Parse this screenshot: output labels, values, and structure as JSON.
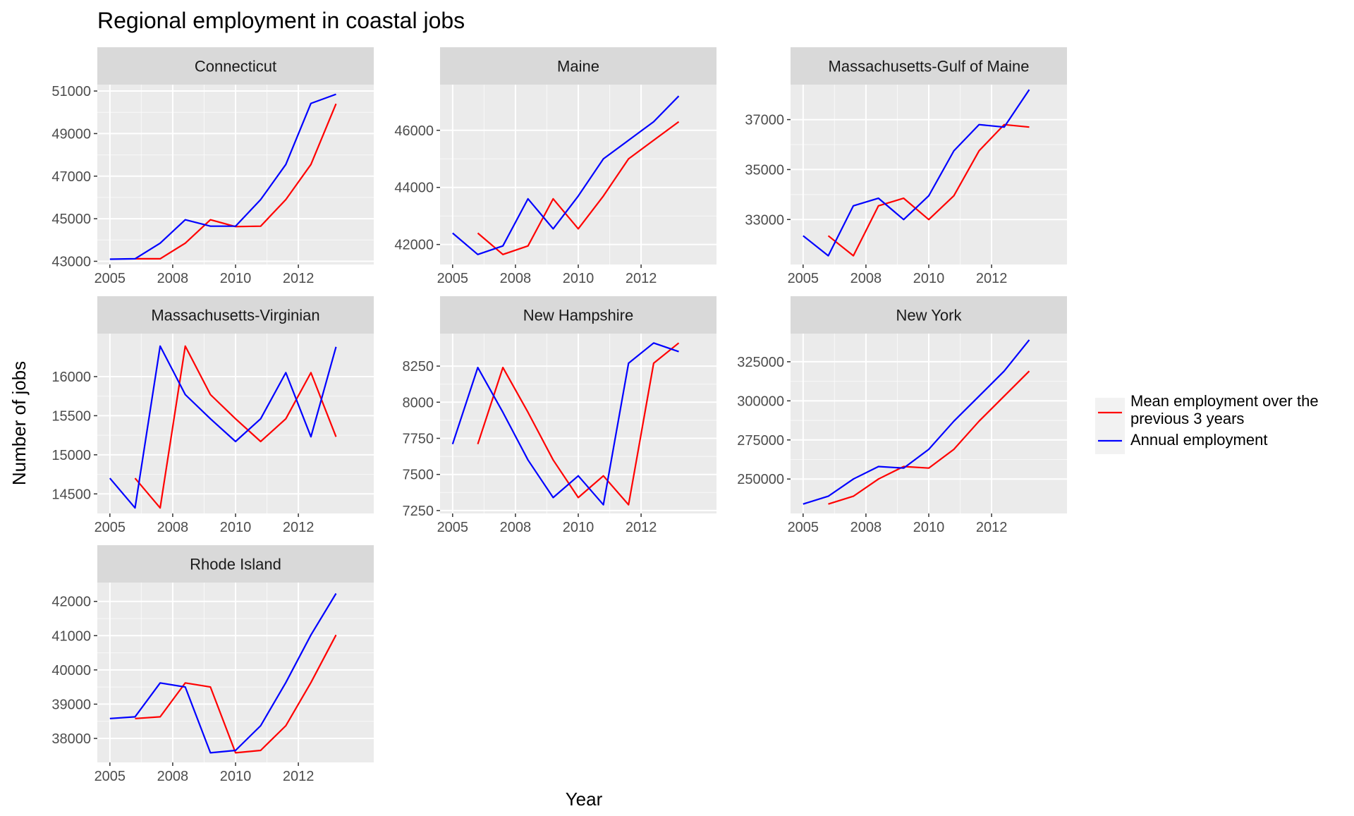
{
  "chart_data": {
    "type": "line",
    "title": "Regional employment in coastal jobs",
    "xlabel": "Year",
    "ylabel": "Number of jobs",
    "x_tick_labels": [
      "2005",
      "2008",
      "2010",
      "2012"
    ],
    "grid": true,
    "legend_position": "right",
    "series_style": [
      {
        "key": "mean",
        "name": "Mean employment over the previous 3 years",
        "name_lines": [
          "Mean employment over the",
          "previous 3 years"
        ],
        "color": "#ff0000"
      },
      {
        "key": "annual",
        "name": "Annual employment",
        "name_lines": [
          "Annual employment"
        ],
        "color": "#0000ff"
      }
    ],
    "panels": [
      {
        "name": "Connecticut",
        "xlim": [
          2004.6,
          2013.4
        ],
        "ylim": [
          42850,
          51300
        ],
        "yticks": [
          43000,
          45000,
          47000,
          49000,
          51000
        ],
        "ytick_labels": [
          "43000",
          "45000",
          "47000",
          "49000",
          "51000"
        ],
        "annual": {
          "x": [
            2005,
            2005.8,
            2006.6,
            2007.4,
            2008.2,
            2009,
            2009.8,
            2010.6,
            2011.4,
            2012.2,
            2013
          ],
          "y": [
            43100,
            43120,
            43850,
            44950,
            44650,
            44650,
            45900,
            47550,
            50420,
            50850,
            null
          ]
        },
        "mean": {
          "x": [
            2005.8,
            2006.6,
            2007.4,
            2008.2,
            2009,
            2009.8,
            2010.6,
            2011.4,
            2012.2,
            2013
          ],
          "y": [
            43120,
            43120,
            43850,
            44950,
            44630,
            44650,
            45900,
            47550,
            50400,
            null
          ]
        }
      },
      {
        "name": "Maine",
        "xlim": [
          2004.6,
          2013.4
        ],
        "ylim": [
          41300,
          47600
        ],
        "yticks": [
          42000,
          44000,
          46000
        ],
        "ytick_labels": [
          "42000",
          "44000",
          "46000"
        ],
        "annual": {
          "x": [
            2005,
            2005.8,
            2006.6,
            2007.4,
            2008.2,
            2009,
            2009.8,
            2010.6,
            2011.4,
            2012.2
          ],
          "y": [
            42400,
            41650,
            41950,
            43600,
            42550,
            43700,
            45000,
            45650,
            46300,
            47200
          ]
        },
        "mean": {
          "x": [
            2005.8,
            2006.6,
            2007.4,
            2008.2,
            2009,
            2009.8,
            2010.6,
            2011.4,
            2012.2
          ],
          "y": [
            42400,
            41650,
            41950,
            43600,
            42550,
            43700,
            45000,
            45650,
            46300
          ]
        }
      },
      {
        "name": "Massachusetts-Gulf of Maine",
        "xlim": [
          2004.6,
          2013.4
        ],
        "ylim": [
          31200,
          38400
        ],
        "yticks": [
          33000,
          35000,
          37000
        ],
        "ytick_labels": [
          "33000",
          "35000",
          "37000"
        ],
        "annual": {
          "x": [
            2005,
            2005.8,
            2006.6,
            2007.4,
            2008.2,
            2009,
            2009.8,
            2010.6,
            2011.4,
            2012.2
          ],
          "y": [
            32350,
            31550,
            33550,
            33850,
            33000,
            33950,
            35750,
            36800,
            36700,
            38200
          ]
        },
        "mean": {
          "x": [
            2005.8,
            2006.6,
            2007.4,
            2008.2,
            2009,
            2009.8,
            2010.6,
            2011.4,
            2012.2
          ],
          "y": [
            32350,
            31550,
            33550,
            33850,
            33000,
            33950,
            35750,
            36800,
            36700
          ]
        }
      },
      {
        "name": "Massachusetts-Virginian",
        "xlim": [
          2004.6,
          2013.4
        ],
        "ylim": [
          14250,
          16550
        ],
        "yticks": [
          14500,
          15000,
          15500,
          16000
        ],
        "ytick_labels": [
          "14500",
          "15000",
          "15500",
          "16000"
        ],
        "annual": {
          "x": [
            2005,
            2005.8,
            2006.6,
            2007.4,
            2008.2,
            2009,
            2009.8,
            2010.6,
            2011.4,
            2012.2
          ],
          "y": [
            14700,
            14320,
            16390,
            15770,
            15460,
            15170,
            15460,
            16050,
            15230,
            16380
          ]
        },
        "mean": {
          "x": [
            2005.8,
            2006.6,
            2007.4,
            2008.2,
            2009,
            2009.8,
            2010.6,
            2011.4,
            2012.2
          ],
          "y": [
            14700,
            14320,
            16390,
            15770,
            15460,
            15170,
            15460,
            16050,
            15230
          ]
        }
      },
      {
        "name": "New Hampshire",
        "xlim": [
          2004.6,
          2013.4
        ],
        "ylim": [
          7230,
          8475
        ],
        "yticks": [
          7250,
          7500,
          7750,
          8000,
          8250
        ],
        "ytick_labels": [
          "7250",
          "7500",
          "7750",
          "8000",
          "8250"
        ],
        "annual": {
          "x": [
            2005,
            2005.8,
            2006.6,
            2007.4,
            2008.2,
            2009,
            2009.8,
            2010.6,
            2011.4,
            2012.2
          ],
          "y": [
            7710,
            8240,
            7930,
            7600,
            7340,
            7490,
            7290,
            8270,
            8410,
            8350
          ]
        },
        "mean": {
          "x": [
            2005.8,
            2006.6,
            2007.4,
            2008.2,
            2009,
            2009.8,
            2010.6,
            2011.4,
            2012.2
          ],
          "y": [
            7710,
            8240,
            7930,
            7600,
            7340,
            7490,
            7290,
            8270,
            8410
          ]
        }
      },
      {
        "name": "New York",
        "xlim": [
          2004.6,
          2013.4
        ],
        "ylim": [
          228000,
          343000
        ],
        "yticks": [
          250000,
          275000,
          300000,
          325000
        ],
        "ytick_labels": [
          "250000",
          "275000",
          "300000",
          "325000"
        ],
        "annual": {
          "x": [
            2005,
            2005.8,
            2006.6,
            2007.4,
            2008.2,
            2009,
            2009.8,
            2010.6,
            2011.4,
            2012.2
          ],
          "y": [
            234000,
            239000,
            250000,
            258000,
            257000,
            269000,
            287000,
            303000,
            319000,
            339000
          ]
        },
        "mean": {
          "x": [
            2005.8,
            2006.6,
            2007.4,
            2008.2,
            2009,
            2009.8,
            2010.6,
            2011.4,
            2012.2
          ],
          "y": [
            234000,
            239000,
            250000,
            258000,
            257000,
            269000,
            287000,
            303000,
            319000
          ]
        }
      },
      {
        "name": "Rhode Island",
        "xlim": [
          2004.6,
          2013.4
        ],
        "ylim": [
          37300,
          42550
        ],
        "yticks": [
          38000,
          39000,
          40000,
          41000,
          42000
        ],
        "ytick_labels": [
          "38000",
          "39000",
          "40000",
          "41000",
          "42000"
        ],
        "annual": {
          "x": [
            2005,
            2005.8,
            2006.6,
            2007.4,
            2008.2,
            2009,
            2009.8,
            2010.6,
            2011.4,
            2012.2
          ],
          "y": [
            38580,
            38630,
            39620,
            39500,
            37580,
            37650,
            38370,
            39630,
            41020,
            42230
          ]
        },
        "mean": {
          "x": [
            2005.8,
            2006.6,
            2007.4,
            2008.2,
            2009,
            2009.8,
            2010.6,
            2011.4,
            2012.2
          ],
          "y": [
            38580,
            38630,
            39620,
            39500,
            37580,
            37650,
            38370,
            39630,
            41020
          ]
        }
      }
    ]
  }
}
